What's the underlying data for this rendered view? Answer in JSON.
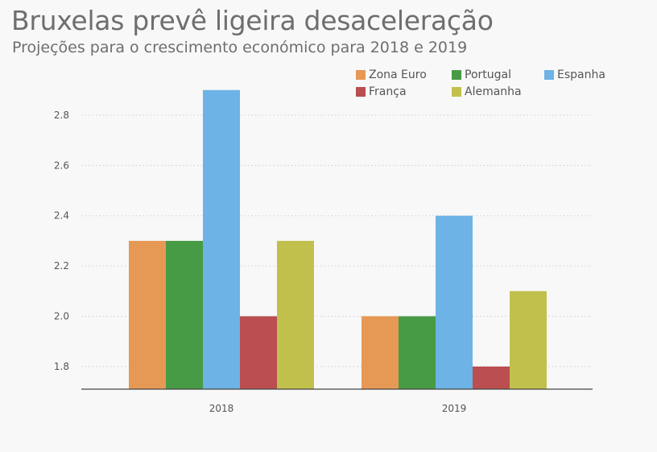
{
  "chart_data": {
    "type": "bar",
    "title": "Bruxelas prevê ligeira desaceleração",
    "subtitle": "Projeções para o crescimento económico para 2018 e 2019",
    "xlabel": "",
    "ylabel": "",
    "categories": [
      "2018",
      "2019"
    ],
    "series": [
      {
        "name": "Zona Euro",
        "values": [
          2.3,
          2.0
        ],
        "color": "#e59954"
      },
      {
        "name": "Portugal",
        "values": [
          2.3,
          2.0
        ],
        "color": "#479b45"
      },
      {
        "name": "Espanha",
        "values": [
          2.9,
          2.4
        ],
        "color": "#6db3e6"
      },
      {
        "name": "França",
        "values": [
          2.0,
          1.8
        ],
        "color": "#ba4e50"
      },
      {
        "name": "Alemanha",
        "values": [
          2.3,
          2.1
        ],
        "color": "#c1c04d"
      }
    ],
    "ylim": [
      1.71,
      2.88
    ],
    "yticks": [
      "1.8",
      "2.0",
      "2.2",
      "2.4",
      "2.6",
      "2.8"
    ],
    "grid": true,
    "legend": "top-right"
  }
}
